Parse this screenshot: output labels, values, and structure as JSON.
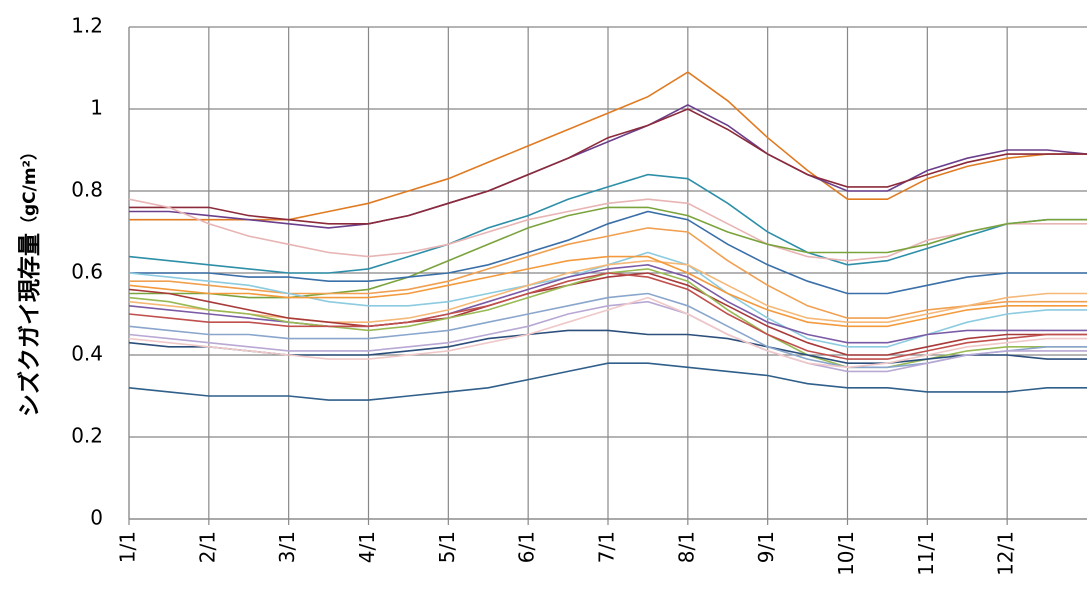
{
  "chart_data": {
    "type": "line",
    "ylabel": "シズクガイ現存量",
    "ylabel_unit": "（gC/m²）",
    "categories": [
      "1/1",
      null,
      "2/1",
      null,
      "3/1",
      null,
      "4/1",
      null,
      "5/1",
      null,
      "6/1",
      null,
      "7/1",
      null,
      "8/1",
      null,
      "9/1",
      null,
      "10/1",
      null,
      "11/1",
      null,
      "12/1",
      null,
      null
    ],
    "ylim": [
      0,
      1.2
    ],
    "yticks": [
      0,
      0.2,
      0.4,
      0.6,
      0.8,
      1,
      1.2
    ],
    "grid": true,
    "series": [
      {
        "color": "#e07b22",
        "values": [
          0.73,
          0.73,
          0.73,
          0.73,
          0.73,
          0.75,
          0.77,
          0.8,
          0.83,
          0.87,
          0.91,
          0.95,
          0.99,
          1.03,
          1.09,
          1.02,
          0.93,
          0.85,
          0.78,
          0.78,
          0.83,
          0.86,
          0.88,
          0.89,
          0.89
        ]
      },
      {
        "color": "#6b3f8c",
        "values": [
          0.75,
          0.75,
          0.74,
          0.73,
          0.72,
          0.71,
          0.72,
          0.74,
          0.77,
          0.8,
          0.84,
          0.88,
          0.92,
          0.96,
          1.01,
          0.96,
          0.89,
          0.84,
          0.8,
          0.8,
          0.85,
          0.88,
          0.9,
          0.9,
          0.89
        ]
      },
      {
        "color": "#8b2a3a",
        "values": [
          0.76,
          0.76,
          0.76,
          0.74,
          0.73,
          0.72,
          0.72,
          0.74,
          0.77,
          0.8,
          0.84,
          0.88,
          0.93,
          0.96,
          1.0,
          0.95,
          0.89,
          0.84,
          0.81,
          0.81,
          0.84,
          0.87,
          0.89,
          0.89,
          0.89
        ]
      },
      {
        "color": "#2e8fa8",
        "values": [
          0.64,
          0.63,
          0.62,
          0.61,
          0.6,
          0.6,
          0.61,
          0.64,
          0.67,
          0.71,
          0.74,
          0.78,
          0.81,
          0.84,
          0.83,
          0.77,
          0.7,
          0.65,
          0.62,
          0.63,
          0.66,
          0.69,
          0.72,
          0.73,
          0.73
        ]
      },
      {
        "color": "#e8b4b4",
        "values": [
          0.78,
          0.76,
          0.72,
          0.69,
          0.67,
          0.65,
          0.64,
          0.65,
          0.67,
          0.7,
          0.73,
          0.75,
          0.77,
          0.78,
          0.77,
          0.72,
          0.67,
          0.64,
          0.63,
          0.64,
          0.68,
          0.7,
          0.72,
          0.72,
          0.72
        ]
      },
      {
        "color": "#7aa33c",
        "values": [
          0.55,
          0.55,
          0.55,
          0.54,
          0.54,
          0.55,
          0.56,
          0.59,
          0.63,
          0.67,
          0.71,
          0.74,
          0.76,
          0.76,
          0.74,
          0.7,
          0.67,
          0.65,
          0.65,
          0.65,
          0.67,
          0.7,
          0.72,
          0.73,
          0.73
        ]
      },
      {
        "color": "#3a6fa8",
        "values": [
          0.6,
          0.6,
          0.6,
          0.59,
          0.59,
          0.58,
          0.58,
          0.59,
          0.6,
          0.62,
          0.65,
          0.68,
          0.72,
          0.75,
          0.73,
          0.67,
          0.62,
          0.58,
          0.55,
          0.55,
          0.57,
          0.59,
          0.6,
          0.6,
          0.6
        ]
      },
      {
        "color": "#f0a050",
        "values": [
          0.58,
          0.58,
          0.57,
          0.56,
          0.55,
          0.55,
          0.55,
          0.56,
          0.58,
          0.61,
          0.64,
          0.67,
          0.69,
          0.71,
          0.7,
          0.63,
          0.57,
          0.52,
          0.49,
          0.49,
          0.51,
          0.52,
          0.53,
          0.53,
          0.53
        ]
      },
      {
        "color": "#8ccbe0",
        "values": [
          0.6,
          0.59,
          0.58,
          0.57,
          0.55,
          0.53,
          0.52,
          0.52,
          0.53,
          0.55,
          0.57,
          0.59,
          0.62,
          0.65,
          0.62,
          0.55,
          0.49,
          0.44,
          0.42,
          0.42,
          0.45,
          0.48,
          0.5,
          0.51,
          0.51
        ]
      },
      {
        "color": "#f5b877",
        "values": [
          0.53,
          0.52,
          0.51,
          0.5,
          0.49,
          0.48,
          0.48,
          0.49,
          0.51,
          0.54,
          0.57,
          0.6,
          0.62,
          0.63,
          0.62,
          0.57,
          0.52,
          0.49,
          0.48,
          0.48,
          0.5,
          0.52,
          0.54,
          0.55,
          0.55
        ]
      },
      {
        "color": "#7b5ba6",
        "values": [
          0.52,
          0.51,
          0.5,
          0.49,
          0.48,
          0.47,
          0.47,
          0.48,
          0.5,
          0.53,
          0.56,
          0.59,
          0.61,
          0.62,
          0.59,
          0.53,
          0.48,
          0.45,
          0.43,
          0.43,
          0.45,
          0.46,
          0.46,
          0.46,
          0.46
        ]
      },
      {
        "color": "#a83a3a",
        "values": [
          0.56,
          0.55,
          0.53,
          0.51,
          0.49,
          0.48,
          0.47,
          0.48,
          0.49,
          0.52,
          0.55,
          0.57,
          0.59,
          0.6,
          0.57,
          0.52,
          0.47,
          0.43,
          0.4,
          0.4,
          0.42,
          0.44,
          0.45,
          0.45,
          0.45
        ]
      },
      {
        "color": "#98b954",
        "values": [
          0.54,
          0.53,
          0.51,
          0.5,
          0.48,
          0.47,
          0.46,
          0.47,
          0.49,
          0.51,
          0.54,
          0.57,
          0.6,
          0.61,
          0.58,
          0.51,
          0.45,
          0.4,
          0.37,
          0.37,
          0.39,
          0.41,
          0.42,
          0.42,
          0.42
        ]
      },
      {
        "color": "#2c4f7c",
        "values": [
          0.43,
          0.42,
          0.42,
          0.41,
          0.4,
          0.4,
          0.4,
          0.41,
          0.42,
          0.44,
          0.45,
          0.46,
          0.46,
          0.45,
          0.45,
          0.44,
          0.42,
          0.4,
          0.38,
          0.38,
          0.39,
          0.4,
          0.4,
          0.39,
          0.39
        ]
      },
      {
        "color": "#8aa6cc",
        "values": [
          0.47,
          0.46,
          0.45,
          0.45,
          0.44,
          0.44,
          0.44,
          0.45,
          0.46,
          0.48,
          0.5,
          0.52,
          0.54,
          0.55,
          0.52,
          0.47,
          0.42,
          0.39,
          0.37,
          0.37,
          0.38,
          0.4,
          0.41,
          0.42,
          0.42
        ]
      },
      {
        "color": "#b8a8d4",
        "values": [
          0.45,
          0.44,
          0.43,
          0.42,
          0.41,
          0.41,
          0.41,
          0.42,
          0.43,
          0.45,
          0.47,
          0.5,
          0.52,
          0.53,
          0.5,
          0.45,
          0.41,
          0.38,
          0.36,
          0.36,
          0.38,
          0.4,
          0.41,
          0.41,
          0.41
        ]
      },
      {
        "color": "#f0c8c8",
        "values": [
          0.44,
          0.43,
          0.42,
          0.41,
          0.4,
          0.39,
          0.39,
          0.4,
          0.41,
          0.43,
          0.45,
          0.48,
          0.51,
          0.54,
          0.5,
          0.45,
          0.41,
          0.38,
          0.37,
          0.38,
          0.4,
          0.42,
          0.43,
          0.44,
          0.44
        ]
      },
      {
        "color": "#2f5f8a",
        "values": [
          0.32,
          0.31,
          0.3,
          0.3,
          0.3,
          0.29,
          0.29,
          0.3,
          0.31,
          0.32,
          0.34,
          0.36,
          0.38,
          0.38,
          0.37,
          0.36,
          0.35,
          0.33,
          0.32,
          0.32,
          0.31,
          0.31,
          0.31,
          0.32,
          0.32
        ]
      },
      {
        "color": "#c0504d",
        "values": [
          0.5,
          0.49,
          0.48,
          0.48,
          0.47,
          0.47,
          0.47,
          0.48,
          0.5,
          0.52,
          0.55,
          0.58,
          0.6,
          0.59,
          0.56,
          0.5,
          0.45,
          0.41,
          0.39,
          0.39,
          0.41,
          0.43,
          0.44,
          0.45,
          0.45
        ]
      },
      {
        "color": "#f39a3c",
        "values": [
          0.57,
          0.56,
          0.55,
          0.55,
          0.54,
          0.54,
          0.54,
          0.55,
          0.57,
          0.59,
          0.61,
          0.63,
          0.64,
          0.64,
          0.6,
          0.55,
          0.51,
          0.48,
          0.47,
          0.47,
          0.49,
          0.51,
          0.52,
          0.52,
          0.52
        ]
      }
    ]
  }
}
